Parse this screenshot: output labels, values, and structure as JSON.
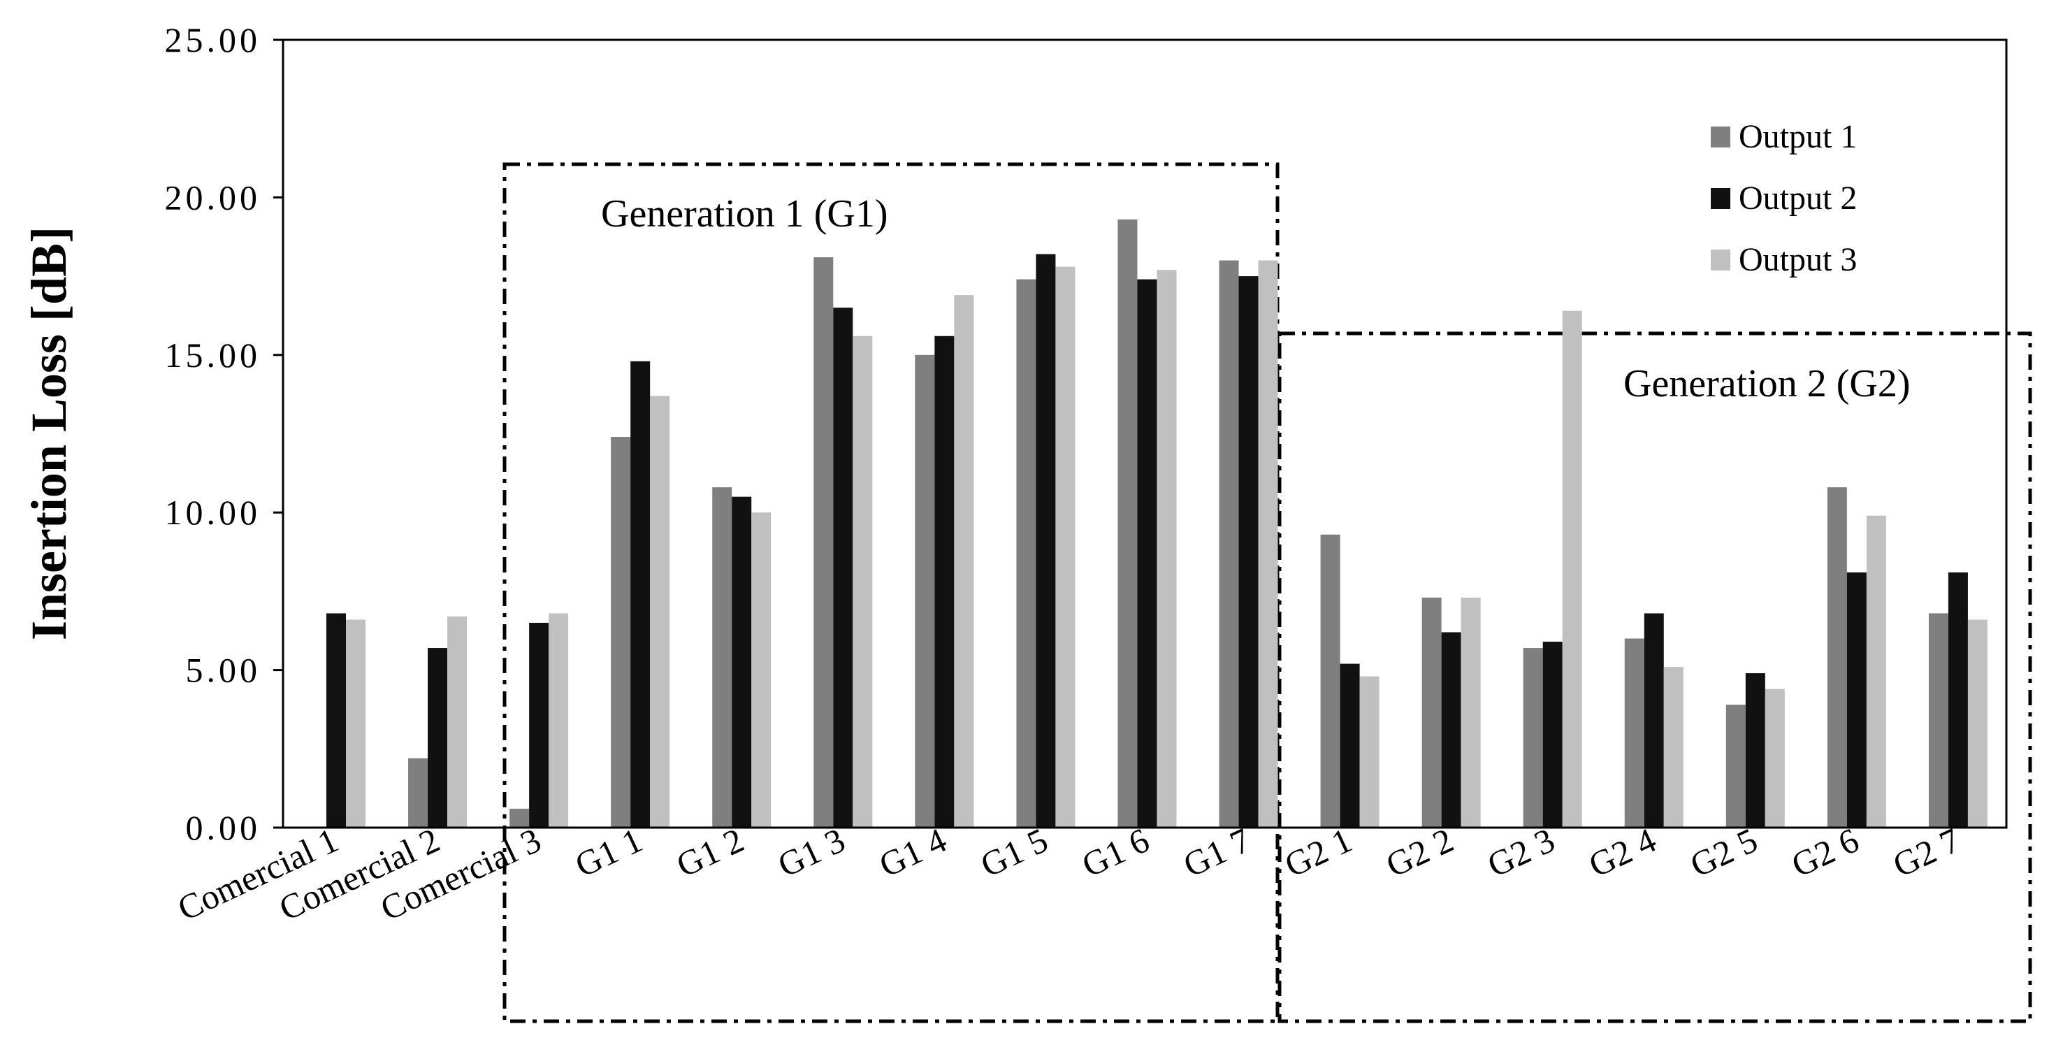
{
  "chart_data": {
    "type": "bar",
    "title": "",
    "xlabel": "",
    "ylabel": "Insertion Loss [dB]",
    "ylim": [
      0,
      25
    ],
    "yticks": [
      "0.00",
      "5.00",
      "10.00",
      "15.00",
      "20.00",
      "25.00"
    ],
    "grid": false,
    "legend_position": "top-right",
    "categories": [
      "Comercial 1",
      "Comercial 2",
      "Comercial 3",
      "G1 1",
      "G1 2",
      "G1 3",
      "G1 4",
      "G1 5",
      "G1 6",
      "G1 7",
      "G2 1",
      "G2 2",
      "G2 3",
      "G2 4",
      "G2 5",
      "G2 6",
      "G2 7"
    ],
    "series": [
      {
        "name": "Output 1",
        "color": "#7f7f7f",
        "values": [
          0.0,
          2.2,
          0.6,
          12.4,
          10.8,
          18.1,
          15.0,
          17.4,
          19.3,
          18.0,
          9.3,
          7.3,
          5.7,
          6.0,
          3.9,
          10.8,
          6.8
        ]
      },
      {
        "name": "Output 2",
        "color": "#111111",
        "values": [
          6.8,
          5.7,
          6.5,
          14.8,
          10.5,
          16.5,
          15.6,
          18.2,
          17.4,
          17.5,
          5.2,
          6.2,
          5.9,
          6.8,
          4.9,
          8.1,
          8.1
        ]
      },
      {
        "name": "Output 3",
        "color": "#c0c0c0",
        "values": [
          6.6,
          6.7,
          6.8,
          13.7,
          10.0,
          15.6,
          16.9,
          17.8,
          17.7,
          18.0,
          4.8,
          7.3,
          16.4,
          5.1,
          4.4,
          9.9,
          6.6
        ]
      }
    ],
    "annotations": [
      {
        "text": "Generation 1 (G1)",
        "spans": [
          "Comercial 3",
          "G1 7"
        ]
      },
      {
        "text": "Generation 2 (G2)",
        "spans": [
          "G2 1",
          "G2 7"
        ]
      }
    ]
  }
}
